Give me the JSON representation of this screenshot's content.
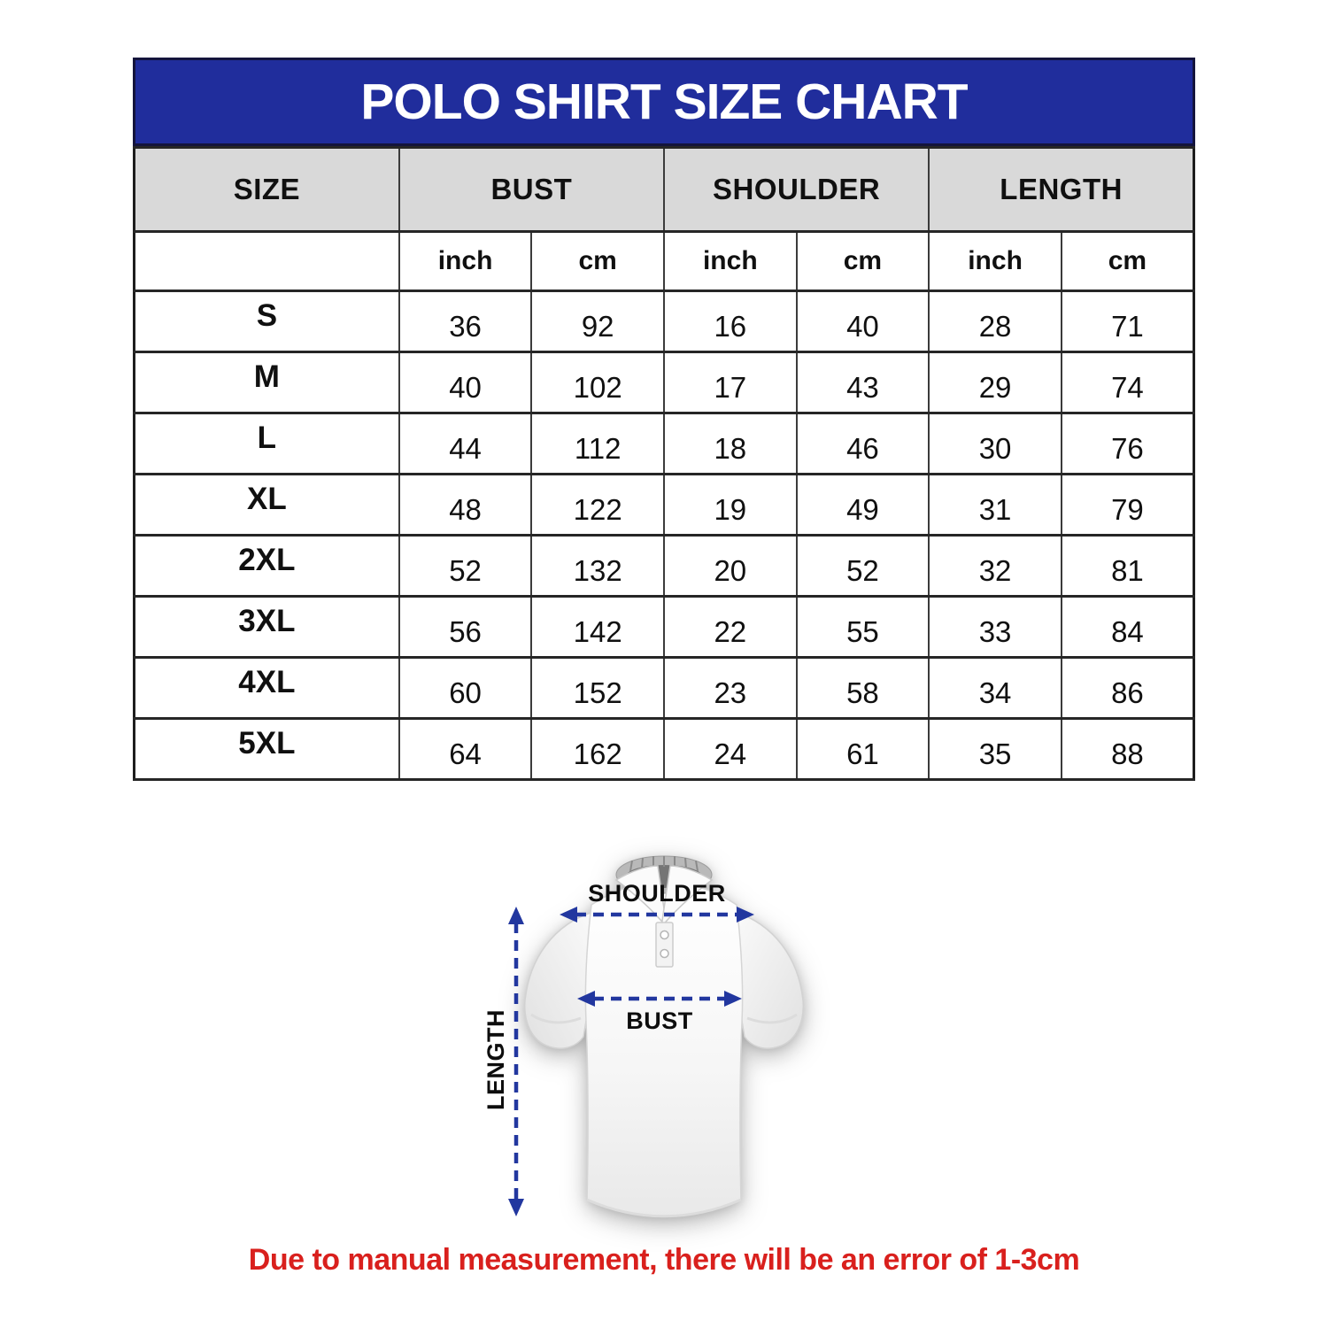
{
  "header": {
    "title": "POLO SHIRT SIZE CHART"
  },
  "chart_data": {
    "type": "table",
    "title": "POLO SHIRT SIZE CHART",
    "column_groups": [
      "SIZE",
      "BUST",
      "SHOULDER",
      "LENGTH"
    ],
    "units_row": [
      "inch",
      "cm",
      "inch",
      "cm",
      "inch",
      "cm"
    ],
    "rows": [
      [
        "S",
        36,
        92,
        16,
        40,
        28,
        71
      ],
      [
        "M",
        40,
        102,
        17,
        43,
        29,
        74
      ],
      [
        "L",
        44,
        112,
        18,
        46,
        30,
        76
      ],
      [
        "XL",
        48,
        122,
        19,
        49,
        31,
        79
      ],
      [
        "2XL",
        52,
        132,
        20,
        52,
        32,
        81
      ],
      [
        "3XL",
        56,
        142,
        22,
        55,
        33,
        84
      ],
      [
        "4XL",
        60,
        152,
        23,
        58,
        34,
        86
      ],
      [
        "5XL",
        64,
        162,
        24,
        61,
        35,
        88
      ]
    ]
  },
  "diagram": {
    "labels": {
      "shoulder": "SHOULDER",
      "bust": "BUST",
      "length": "LENGTH"
    },
    "arrow_color": "#22379f"
  },
  "disclaimer": {
    "text": "Due to manual measurement, there will be an error of 1-3cm",
    "color": "#d9201d"
  },
  "colors": {
    "banner_blue": "#202d9c",
    "banner_border": "#14143c",
    "header_gray": "#d9d9d9",
    "table_border": "#262626",
    "title_text": "#ffffff",
    "body_text": "#101010"
  }
}
